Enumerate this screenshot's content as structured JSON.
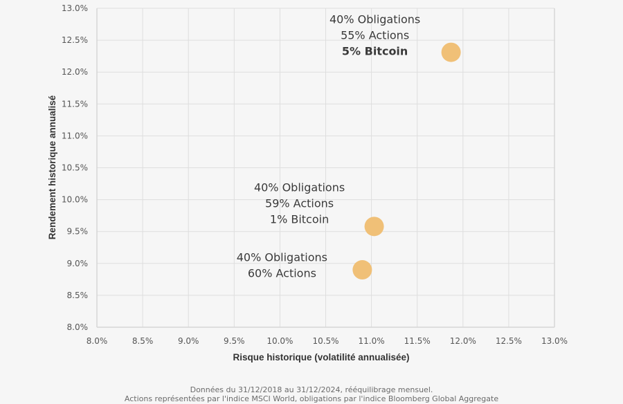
{
  "chart_data": {
    "type": "scatter",
    "title": "",
    "xlabel": "Risque historique (volatilité annualisée)",
    "ylabel": "Rendement historique annualisé",
    "xlim": [
      8.0,
      13.0
    ],
    "ylim": [
      8.0,
      13.0
    ],
    "x_ticks": [
      "8.0%",
      "8.5%",
      "9.0%",
      "9.5%",
      "10.0%",
      "10.5%",
      "11.0%",
      "11.5%",
      "12.0%",
      "12.5%",
      "13.0%"
    ],
    "y_ticks": [
      "8.0%",
      "8.5%",
      "9.0%",
      "9.5%",
      "10.0%",
      "10.5%",
      "11.0%",
      "11.5%",
      "12.0%",
      "12.5%",
      "13.0%"
    ],
    "grid": true,
    "marker_color": "#f0c077",
    "points": [
      {
        "name": "40/55/5",
        "x": 11.87,
        "y": 12.31,
        "label_lines": [
          {
            "text": "40% Obligations",
            "bold": false
          },
          {
            "text": "55% Actions",
            "bold": false
          },
          {
            "text": "5% Bitcoin",
            "bold": true
          }
        ]
      },
      {
        "name": "40/59/1",
        "x": 11.03,
        "y": 9.58,
        "label_lines": [
          {
            "text": "40% Obligations",
            "bold": false
          },
          {
            "text": "59% Actions",
            "bold": false
          },
          {
            "text": "1% Bitcoin",
            "bold": false
          }
        ]
      },
      {
        "name": "40/60",
        "x": 10.9,
        "y": 8.9,
        "label_lines": [
          {
            "text": "40% Obligations",
            "bold": false
          },
          {
            "text": "60% Actions",
            "bold": false
          }
        ]
      }
    ]
  },
  "footnote": {
    "line1": "Données du 31/12/2018 au 31/12/2024, rééquilibrage mensuel.",
    "line2": "Actions représentées par l'indice MSCI World, obligations par l'indice Bloomberg Global Aggregate"
  }
}
